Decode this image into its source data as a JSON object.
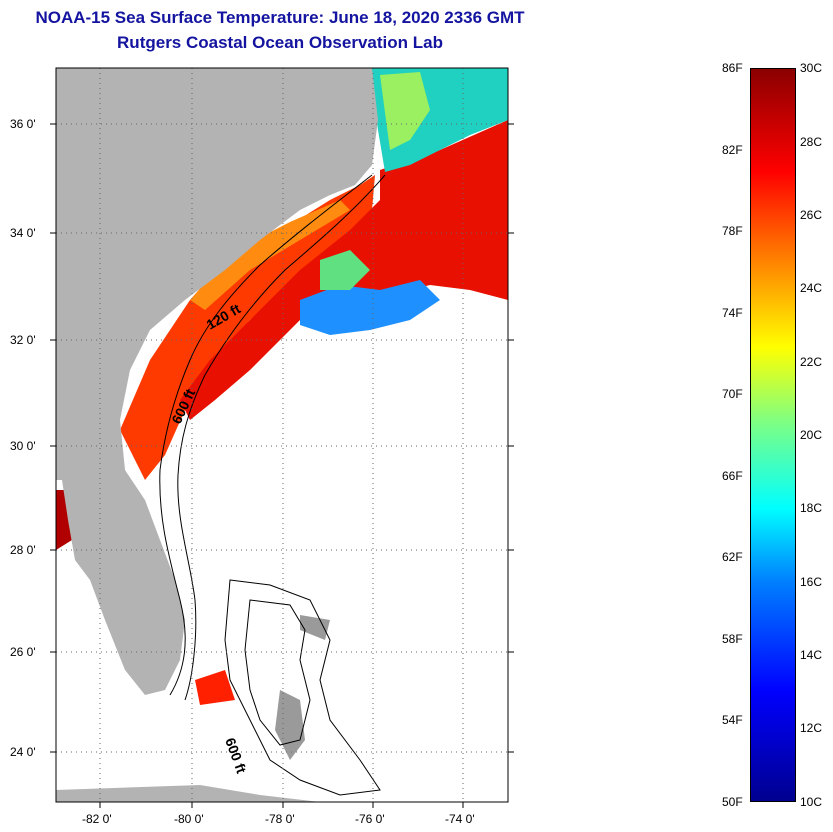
{
  "header": {
    "title": "NOAA-15 Sea Surface Temperature:  June 18, 2020 2336 GMT",
    "subtitle": "Rutgers Coastal Ocean Observation Lab"
  },
  "map": {
    "lat_labels": [
      "36 0'",
      "34 0'",
      "32 0'",
      "30 0'",
      "28 0'",
      "26 0'",
      "24 0'"
    ],
    "lon_labels": [
      "-82 0'",
      "-80 0'",
      "-78 0'",
      "-76 0'",
      "-74 0'"
    ],
    "contour_labels": [
      "120 ft",
      "600 ft",
      "600 ft"
    ],
    "colors": {
      "land": "#b3b3b3",
      "warm": "#ff2a00",
      "cool": "#00c0ff",
      "gulfstream": "#e00000"
    }
  },
  "colorbar": {
    "fahrenheit": [
      "86F",
      "82F",
      "78F",
      "74F",
      "70F",
      "66F",
      "62F",
      "58F",
      "54F",
      "50F"
    ],
    "celsius": [
      "30C",
      "28C",
      "26C",
      "24C",
      "22C",
      "20C",
      "18C",
      "16C",
      "14C",
      "12C",
      "10C"
    ]
  }
}
